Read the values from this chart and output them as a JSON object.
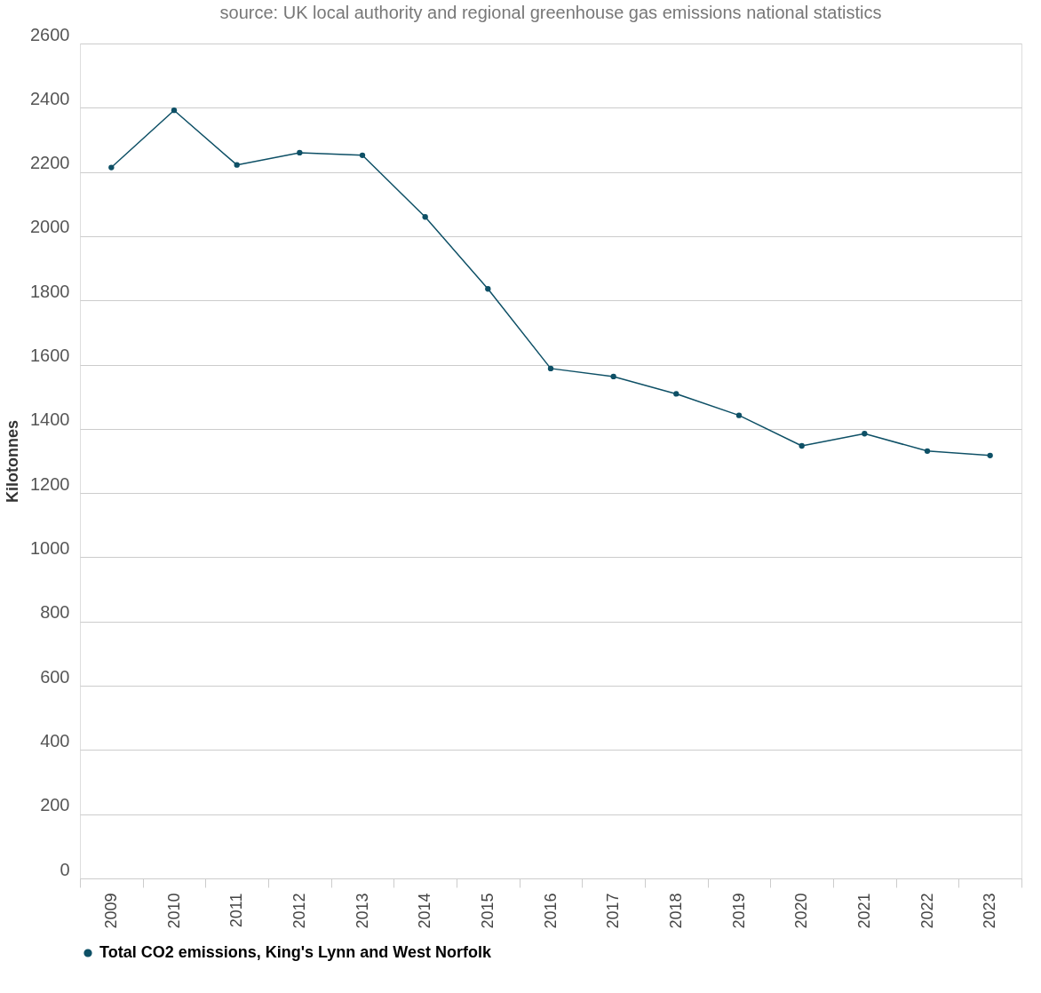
{
  "chart_data": {
    "type": "line",
    "title": "source: UK local authority and regional greenhouse gas emissions national statistics",
    "ylabel": "Kilotonnes",
    "categories": [
      "2009",
      "2010",
      "2011",
      "2012",
      "2013",
      "2014",
      "2015",
      "2016",
      "2017",
      "2018",
      "2019",
      "2020",
      "2021",
      "2022",
      "2023"
    ],
    "series": [
      {
        "name": "Total CO2 emissions, King's Lynn and West Norfolk",
        "color": "#0e5066",
        "values": [
          2214,
          2392,
          2222,
          2260,
          2252,
          2060,
          1836,
          1588,
          1563,
          1509,
          1442,
          1347,
          1385,
          1331,
          1317
        ]
      }
    ],
    "ylim": [
      0,
      2600
    ],
    "yticks": [
      0,
      200,
      400,
      600,
      800,
      1000,
      1200,
      1400,
      1600,
      1800,
      2000,
      2200,
      2400,
      2600
    ],
    "grid": "y",
    "legend": "bottom",
    "marker": "circle",
    "line_style": "solid"
  }
}
